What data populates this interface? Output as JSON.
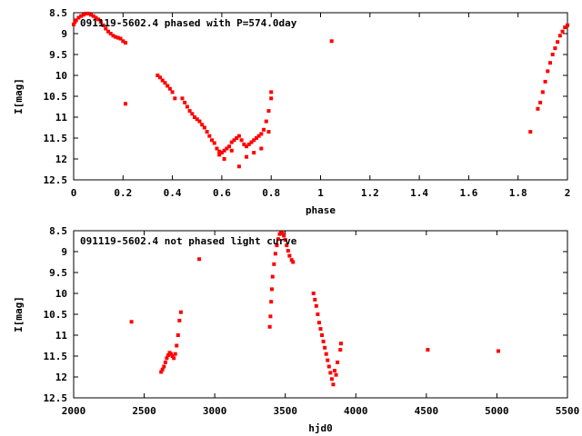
{
  "chart_data": [
    {
      "type": "scatter",
      "title": "091119-5602.4 phased with P=574.0day",
      "xlabel": "phase",
      "ylabel": "I[mag]",
      "xlim": [
        0,
        2
      ],
      "ylim": [
        8.5,
        12.5
      ],
      "y_inverted": true,
      "grid": false,
      "marker_color": "#ff0000",
      "x_ticks": [
        0,
        0.2,
        0.4,
        0.6,
        0.8,
        1,
        1.2,
        1.4,
        1.6,
        1.8,
        2
      ],
      "x_tick_labels": [
        "0",
        "0.2",
        "0.4",
        "0.6",
        "0.8",
        "1",
        "1.2",
        "1.4",
        "1.6",
        "1.8",
        "2"
      ],
      "y_ticks": [
        8.5,
        9,
        9.5,
        10,
        10.5,
        11,
        11.5,
        12,
        12.5
      ],
      "y_tick_labels": [
        "8.5",
        "9",
        "9.5",
        "10",
        "10.5",
        "11",
        "11.5",
        "12",
        "12.5"
      ],
      "series": [
        {
          "x": [
            0.0,
            0.005,
            0.01,
            0.02,
            0.03,
            0.04,
            0.05,
            0.06,
            0.07,
            0.08,
            0.09,
            0.1,
            0.11,
            0.12,
            0.13,
            0.14,
            0.15,
            0.16,
            0.17,
            0.18,
            0.19,
            0.2,
            0.21,
            0.21,
            0.34,
            0.35,
            0.36,
            0.37,
            0.38,
            0.39,
            0.4,
            0.41,
            0.44,
            0.45,
            0.46,
            0.47,
            0.48,
            0.49,
            0.5,
            0.51,
            0.52,
            0.53,
            0.54,
            0.55,
            0.56,
            0.57,
            0.58,
            0.59,
            0.6,
            0.61,
            0.62,
            0.63,
            0.64,
            0.65,
            0.66,
            0.67,
            0.68,
            0.69,
            0.7,
            0.71,
            0.72,
            0.73,
            0.74,
            0.75,
            0.76,
            0.77,
            0.78,
            0.79,
            0.8,
            0.8,
            0.59,
            0.61,
            0.64,
            0.67,
            0.7,
            0.73,
            0.76,
            0.79,
            1.045,
            1.85,
            1.88,
            1.89,
            1.9,
            1.91,
            1.92,
            1.93,
            1.94,
            1.95,
            1.96,
            1.97,
            1.98,
            1.99,
            2.0
          ],
          "y": [
            8.78,
            8.72,
            8.68,
            8.62,
            8.58,
            8.55,
            8.52,
            8.52,
            8.55,
            8.58,
            8.62,
            8.66,
            8.72,
            8.8,
            8.88,
            8.95,
            9.0,
            9.05,
            9.08,
            9.1,
            9.12,
            9.18,
            9.22,
            10.68,
            10.0,
            10.05,
            10.12,
            10.18,
            10.25,
            10.32,
            10.4,
            10.55,
            10.55,
            10.65,
            10.75,
            10.85,
            10.92,
            11.0,
            11.05,
            11.1,
            11.18,
            11.25,
            11.35,
            11.45,
            11.55,
            11.62,
            11.75,
            11.82,
            11.85,
            11.8,
            11.75,
            11.7,
            11.6,
            11.55,
            11.5,
            11.45,
            11.55,
            11.65,
            11.7,
            11.65,
            11.6,
            11.55,
            11.5,
            11.45,
            11.4,
            11.3,
            11.1,
            10.85,
            10.55,
            10.4,
            11.9,
            12.0,
            11.8,
            12.18,
            11.95,
            11.85,
            11.75,
            11.35,
            9.18,
            11.35,
            10.8,
            10.65,
            10.4,
            10.15,
            9.9,
            9.7,
            9.5,
            9.35,
            9.2,
            9.05,
            8.95,
            8.85,
            8.8
          ]
        }
      ]
    },
    {
      "type": "scatter",
      "title": "091119-5602.4 not phased light curve",
      "xlabel": "hjd0",
      "ylabel": "I[mag]",
      "xlim": [
        2000,
        5500
      ],
      "ylim": [
        8.5,
        12.5
      ],
      "y_inverted": true,
      "grid": false,
      "marker_color": "#ff0000",
      "x_ticks": [
        2000,
        2500,
        3000,
        3500,
        4000,
        4500,
        5000,
        5500
      ],
      "x_tick_labels": [
        "2000",
        "2500",
        "3000",
        "3500",
        "4000",
        "4500",
        "5000",
        "5500"
      ],
      "y_ticks": [
        8.5,
        9,
        9.5,
        10,
        10.5,
        11,
        11.5,
        12,
        12.5
      ],
      "y_tick_labels": [
        "8.5",
        "9",
        "9.5",
        "10",
        "10.5",
        "11",
        "11.5",
        "12",
        "12.5"
      ],
      "series": [
        {
          "x": [
            2410,
            2620,
            2630,
            2640,
            2650,
            2660,
            2670,
            2680,
            2690,
            2700,
            2710,
            2720,
            2730,
            2740,
            2750,
            2760,
            2890,
            3390,
            3395,
            3400,
            3405,
            3410,
            3420,
            3430,
            3440,
            3450,
            3460,
            3470,
            3480,
            3490,
            3500,
            3510,
            3520,
            3530,
            3545,
            3555,
            3700,
            3710,
            3720,
            3730,
            3740,
            3750,
            3760,
            3770,
            3780,
            3790,
            3800,
            3810,
            3820,
            3830,
            3840,
            3850,
            3860,
            3870,
            3890,
            3895,
            4510,
            5010
          ],
          "y": [
            10.68,
            11.88,
            11.82,
            11.75,
            11.65,
            11.55,
            11.48,
            11.42,
            11.45,
            11.5,
            11.55,
            11.45,
            11.25,
            11.0,
            10.65,
            10.45,
            9.18,
            10.8,
            10.55,
            10.2,
            9.9,
            9.6,
            9.3,
            9.05,
            8.85,
            8.7,
            8.58,
            8.55,
            8.56,
            8.62,
            8.72,
            8.85,
            8.98,
            9.1,
            9.2,
            9.25,
            10.0,
            10.15,
            10.3,
            10.5,
            10.7,
            10.85,
            11.0,
            11.15,
            11.3,
            11.45,
            11.6,
            11.75,
            11.9,
            12.05,
            12.18,
            11.85,
            11.95,
            11.65,
            11.35,
            11.2,
            11.35,
            11.38
          ]
        }
      ]
    }
  ]
}
